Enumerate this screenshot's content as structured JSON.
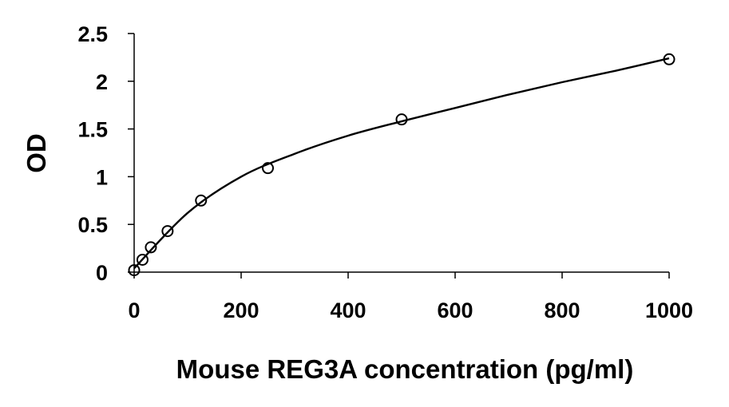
{
  "chart_data": {
    "type": "scatter",
    "title": "",
    "xlabel": "Mouse REG3A concentration (pg/ml)",
    "ylabel": "OD",
    "xlim": [
      0,
      1000
    ],
    "ylim": [
      0,
      2.5
    ],
    "x_ticks": [
      "0",
      "200",
      "400",
      "600",
      "800",
      "1000"
    ],
    "y_ticks": [
      "0",
      "0.5",
      "1",
      "1.5",
      "2",
      "2.5"
    ],
    "grid": false,
    "legend": "none",
    "series": [
      {
        "points": [
          {
            "x": 0,
            "y": 0.02
          },
          {
            "x": 15.6,
            "y": 0.13
          },
          {
            "x": 31.25,
            "y": 0.26
          },
          {
            "x": 62.5,
            "y": 0.43
          },
          {
            "x": 125,
            "y": 0.75
          },
          {
            "x": 250,
            "y": 1.09
          },
          {
            "x": 500,
            "y": 1.6
          },
          {
            "x": 1000,
            "y": 2.23
          }
        ],
        "trendline": [
          {
            "x": 0,
            "y": 0.04
          },
          {
            "x": 100,
            "y": 0.62
          },
          {
            "x": 200,
            "y": 1.0
          },
          {
            "x": 300,
            "y": 1.24
          },
          {
            "x": 400,
            "y": 1.43
          },
          {
            "x": 500,
            "y": 1.58
          },
          {
            "x": 600,
            "y": 1.72
          },
          {
            "x": 700,
            "y": 1.86
          },
          {
            "x": 800,
            "y": 1.99
          },
          {
            "x": 900,
            "y": 2.11
          },
          {
            "x": 1000,
            "y": 2.24
          }
        ]
      }
    ]
  }
}
